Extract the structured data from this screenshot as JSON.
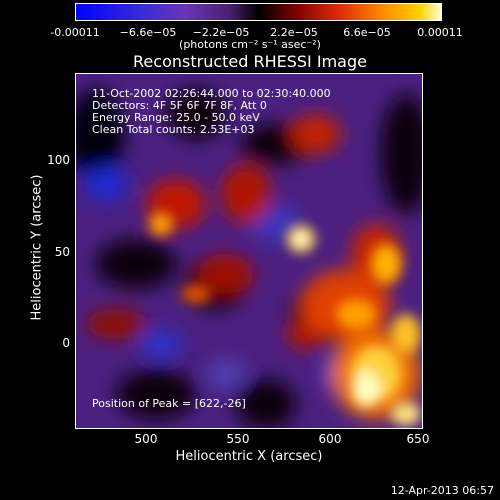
{
  "colorbar": {
    "ticks": [
      "-0.00011",
      "−6.6e−05",
      "−2.2e−05",
      "2.2e−05",
      "6.6e−05",
      "0.00011"
    ],
    "units": "(photons cm⁻² s⁻¹ asec⁻²)"
  },
  "title": "Reconstructed RHESSI Image",
  "info": {
    "line1": "11-Oct-2002 02:26:44.000 to 02:30:40.000",
    "line2": "Detectors: 4F 5F 6F 7F 8F, Att 0",
    "line3": "Energy Range: 25.0 - 50.0 keV",
    "line4": "Clean     Total counts: 2.53E+03",
    "peak": "Position of Peak = [622,-26]"
  },
  "axes": {
    "xlabel": "Heliocentric X (arcsec)",
    "ylabel": "Heliocentric Y (arcsec)",
    "xticks": [
      "500",
      "550",
      "600",
      "650"
    ],
    "yticks": [
      "100",
      "50",
      "0"
    ]
  },
  "footer": "12-Apr-2013 06:57",
  "colors": {
    "background": "#000000",
    "text": "#ffffff"
  }
}
